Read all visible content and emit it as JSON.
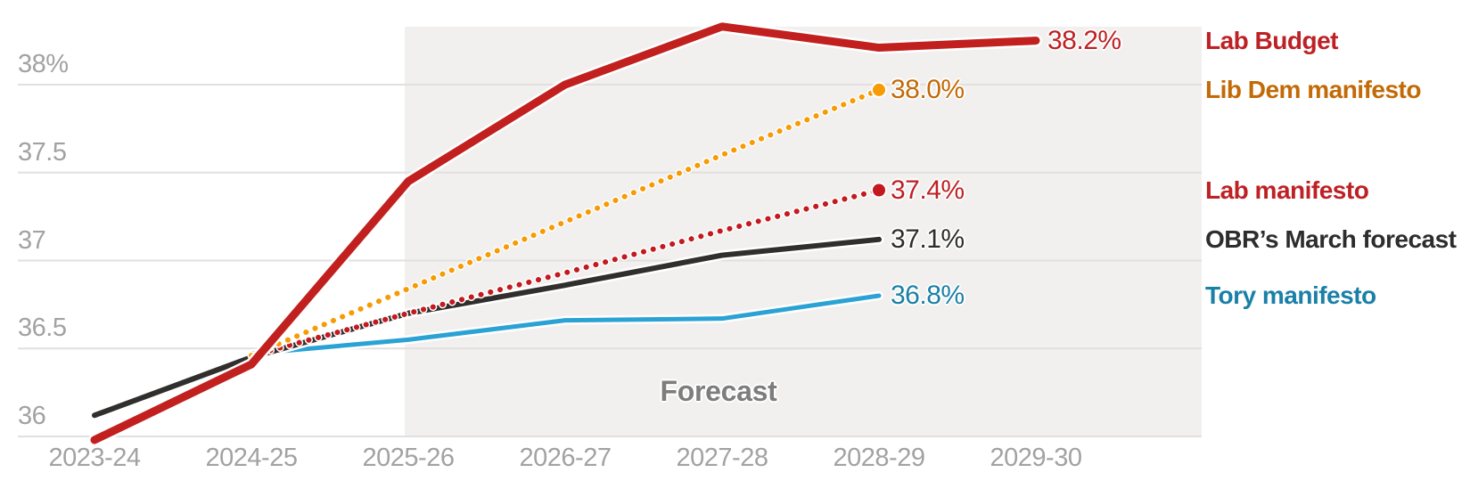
{
  "chart_data": {
    "type": "line",
    "categories": [
      "2023-24",
      "2024-25",
      "2025-26",
      "2026-27",
      "2027-28",
      "2028-29",
      "2029-30"
    ],
    "y_axis": {
      "tick_labels": [
        "38%",
        "37.5",
        "37",
        "36.5",
        "36"
      ],
      "tick_values": [
        38,
        37.5,
        37,
        36.5,
        36
      ],
      "range": [
        35.7,
        38.5
      ]
    },
    "grid": "horizontal",
    "background": "#ffffff",
    "gridline_color": "#e2e0de",
    "axis_label_color": "#a2a2a2",
    "forecast_band": {
      "label": "Forecast",
      "from_category": "2025-26",
      "fill": "#f1f0ee",
      "label_color": "#7d7d7d"
    },
    "series": [
      {
        "id": "lab-budget",
        "name": "Lab Budget",
        "style": "solid",
        "width": 9,
        "line_color": "#c1201f",
        "label_color": "#bd2125",
        "values": [
          35.98,
          36.41,
          37.45,
          38.0,
          38.33,
          38.21,
          38.25
        ],
        "end_label": "38.2%",
        "end_marker": false
      },
      {
        "id": "lib-dem-manifesto",
        "name": "Lib Dem manifesto",
        "style": "dotted",
        "width": 6,
        "line_color": "#f79b04",
        "label_color": "#c26a06",
        "values": [
          null,
          36.46,
          36.84,
          37.22,
          37.6,
          37.97,
          null
        ],
        "end_label": "38.0%",
        "end_marker": true
      },
      {
        "id": "lab-manifesto",
        "name": "Lab manifesto",
        "style": "dotted",
        "width": 6,
        "line_color": "#c4191e",
        "label_color": "#bd2125",
        "values": [
          null,
          36.46,
          36.7,
          36.93,
          37.17,
          37.4,
          null
        ],
        "end_label": "37.4%",
        "end_marker": true
      },
      {
        "id": "obr-march-forecast",
        "name": "OBR’s March forecast",
        "style": "solid",
        "width": 6,
        "line_color": "#302f2d",
        "label_color": "#2d2d2d",
        "values": [
          36.12,
          36.45,
          36.7,
          36.86,
          37.03,
          37.12,
          null
        ],
        "end_label": "37.1%",
        "end_marker": false
      },
      {
        "id": "tory-manifesto",
        "name": "Tory manifesto",
        "style": "solid",
        "width": 5,
        "line_color": "#2ba2d4",
        "label_color": "#1a80a7",
        "values": [
          null,
          36.47,
          36.55,
          36.66,
          36.67,
          36.8,
          null
        ],
        "end_label": "36.8%",
        "end_marker": false
      }
    ]
  }
}
